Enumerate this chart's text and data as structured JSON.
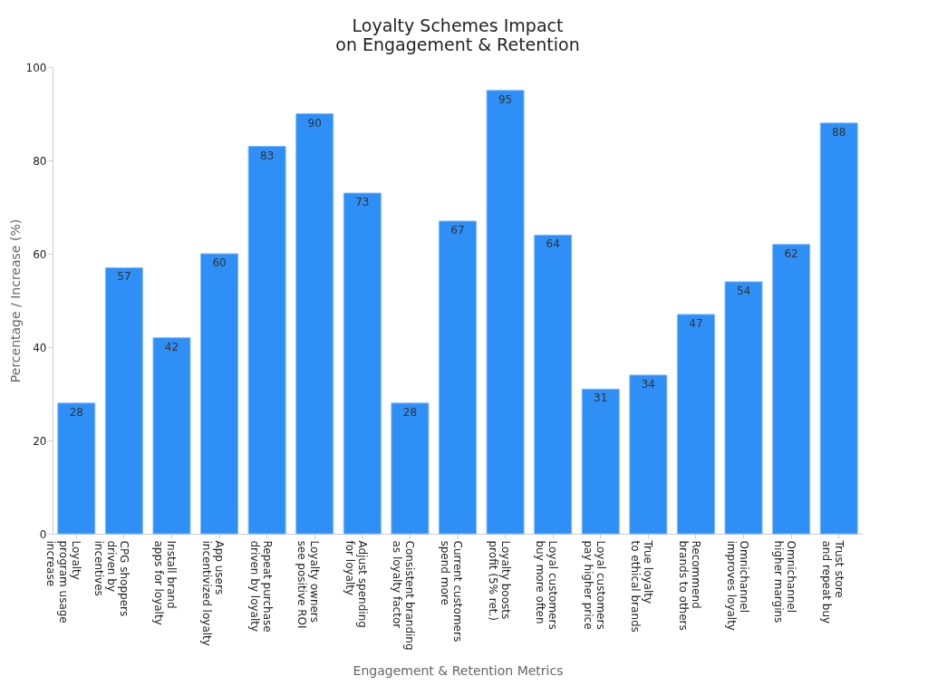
{
  "chart_data": {
    "type": "bar",
    "title": "Loyalty Schemes Impact\non Engagement & Retention",
    "xlabel": "Engagement & Retention Metrics",
    "ylabel": "Percentage / Increase (%)",
    "categories": [
      "Loyalty\nprogram usage\nincrease",
      "CPG shoppers\ndriven by\nincentives",
      "Install brand\napps for loyalty",
      "App users\nincentivized loyalty",
      "Repeat purchase\ndriven by loyalty",
      "Loyalty owners\nsee positive ROI",
      "Adjust spending\nfor loyalty",
      "Consistent branding\nas loyalty factor",
      "Current customers\nspend more",
      "Loyalty boosts\nprofit (5% ret.)",
      "Loyal customers\nbuy more often",
      "Loyal customers\npay higher price",
      "True loyalty\nto ethical brands",
      "Recommend\nbrands to others",
      "Omnichannel\nimproves loyalty",
      "Omnichannel\nhigher margins",
      "Trust store\nand repeat buy"
    ],
    "values": [
      28,
      57,
      42,
      60,
      83,
      90,
      73,
      28,
      67,
      95,
      64,
      31,
      34,
      47,
      54,
      62,
      88
    ],
    "color": "#2e8ff7",
    "ylim": [
      0,
      100
    ],
    "yticks": [
      0,
      20,
      40,
      60,
      80,
      100
    ],
    "grid": false,
    "data_labels": true
  }
}
